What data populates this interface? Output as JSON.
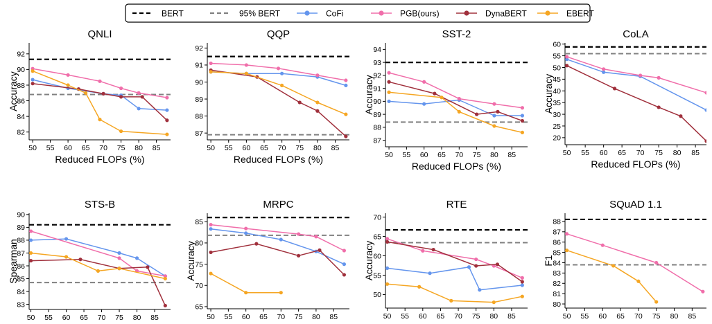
{
  "legend": {
    "placement": "top-center",
    "entries": [
      {
        "key": "bert",
        "label": "BERT",
        "style": "dashed",
        "color": "#000000"
      },
      {
        "key": "bert95",
        "label": "95% BERT",
        "style": "dashed",
        "color": "#808080"
      },
      {
        "key": "cofi",
        "label": "CoFi",
        "style": "solid-marker",
        "color": "#6495ED"
      },
      {
        "key": "pgb",
        "label": "PGB(ours)",
        "style": "solid-marker",
        "color": "#F06EAA"
      },
      {
        "key": "dyna",
        "label": "DynaBERT",
        "style": "solid-marker",
        "color": "#A0303C"
      },
      {
        "key": "ebert",
        "label": "EBERT",
        "style": "solid-marker",
        "color": "#F5A623"
      }
    ]
  },
  "chart_data": [
    {
      "type": "line",
      "title": "QNLI",
      "xlabel": "Reduced FLOPs (%)",
      "ylabel": "Accuracy",
      "xlim": [
        49,
        89
      ],
      "ylim": [
        81,
        93.4
      ],
      "xticks": [
        50,
        55,
        60,
        65,
        70,
        75,
        80,
        85
      ],
      "yticks": [
        82,
        84,
        86,
        88,
        90,
        92
      ],
      "grid": false,
      "ref_bert": 91.3,
      "ref_95": 86.8,
      "series": [
        {
          "name": "CoFi",
          "x": [
            50,
            60,
            70,
            75,
            80,
            88
          ],
          "y": [
            88.7,
            87.6,
            86.9,
            86.7,
            85.0,
            84.8
          ]
        },
        {
          "name": "PGB(ours)",
          "x": [
            50,
            60,
            69,
            75,
            80,
            88
          ],
          "y": [
            90.1,
            89.3,
            88.5,
            87.6,
            87.0,
            86.4
          ]
        },
        {
          "name": "DynaBERT",
          "x": [
            50,
            63,
            70,
            75,
            81,
            88
          ],
          "y": [
            88.2,
            87.5,
            86.9,
            86.5,
            86.5,
            83.5
          ]
        },
        {
          "name": "EBERT",
          "x": [
            50,
            60,
            65,
            69,
            75,
            88
          ],
          "y": [
            89.8,
            88.0,
            87.0,
            83.6,
            82.1,
            81.7
          ]
        }
      ]
    },
    {
      "type": "line",
      "title": "QQP",
      "xlabel": "Reduced FLOPs (%)",
      "ylabel": "",
      "xlim": [
        49,
        89
      ],
      "ylim": [
        86.6,
        92.3
      ],
      "xticks": [
        50,
        55,
        60,
        65,
        70,
        75,
        80,
        85
      ],
      "yticks": [
        87,
        88,
        89,
        90,
        91,
        92
      ],
      "grid": false,
      "ref_bert": 91.5,
      "ref_95": 86.9,
      "series": [
        {
          "name": "CoFi",
          "x": [
            50,
            60,
            70,
            80,
            88
          ],
          "y": [
            90.6,
            90.5,
            90.5,
            90.3,
            89.8
          ]
        },
        {
          "name": "PGB(ours)",
          "x": [
            50,
            60,
            69,
            80,
            88
          ],
          "y": [
            91.1,
            91.0,
            90.8,
            90.4,
            90.1
          ]
        },
        {
          "name": "DynaBERT",
          "x": [
            50,
            63,
            75,
            80,
            88
          ],
          "y": [
            90.7,
            90.3,
            88.8,
            88.3,
            86.8
          ]
        },
        {
          "name": "EBERT",
          "x": [
            50,
            60,
            70,
            80,
            88
          ],
          "y": [
            90.6,
            90.5,
            89.8,
            88.8,
            88.1
          ]
        }
      ]
    },
    {
      "type": "line",
      "title": "SST-2",
      "xlabel": "Reduced FLOPs (%)",
      "ylabel": "Accuracy",
      "xlim": [
        49,
        89.5
      ],
      "ylim": [
        86.5,
        94.5
      ],
      "xticks": [
        50,
        55,
        60,
        65,
        70,
        75,
        80,
        85
      ],
      "yticks": [
        87,
        88,
        89,
        90,
        91,
        92,
        93,
        94
      ],
      "grid": false,
      "ref_bert": 93.0,
      "ref_95": 88.4,
      "series": [
        {
          "name": "CoFi",
          "x": [
            50,
            60,
            70,
            80,
            88
          ],
          "y": [
            90.0,
            89.8,
            90.1,
            88.9,
            88.9
          ]
        },
        {
          "name": "PGB(ours)",
          "x": [
            50,
            60,
            70,
            80,
            88
          ],
          "y": [
            92.2,
            91.5,
            90.2,
            89.8,
            89.5
          ]
        },
        {
          "name": "DynaBERT",
          "x": [
            50,
            63,
            75,
            81,
            88
          ],
          "y": [
            91.5,
            90.6,
            89.0,
            89.2,
            88.5
          ]
        },
        {
          "name": "EBERT",
          "x": [
            50,
            65,
            70,
            80,
            88
          ],
          "y": [
            90.7,
            90.3,
            89.2,
            88.1,
            87.6
          ]
        }
      ]
    },
    {
      "type": "line",
      "title": "CoLA",
      "xlabel": "Reduced FLOPs (%)",
      "ylabel": "Accuracy",
      "xlim": [
        49.5,
        88
      ],
      "ylim": [
        17,
        60.5
      ],
      "xticks": [
        50,
        55,
        60,
        65,
        70,
        75,
        80,
        85
      ],
      "yticks": [
        20,
        25,
        30,
        35,
        40,
        45,
        50,
        55,
        60
      ],
      "grid": false,
      "ref_bert": 58.8,
      "ref_95": 55.9,
      "series": [
        {
          "name": "CoFi",
          "x": [
            50,
            60,
            70,
            88
          ],
          "y": [
            53.5,
            48.0,
            46.2,
            31.8
          ]
        },
        {
          "name": "PGB(ours)",
          "x": [
            50,
            60,
            70,
            75,
            88
          ],
          "y": [
            54.6,
            49.3,
            46.6,
            45.6,
            39.2
          ]
        },
        {
          "name": "DynaBERT",
          "x": [
            50,
            63,
            75,
            81,
            88
          ],
          "y": [
            50.8,
            41.0,
            33.0,
            29.2,
            18.5
          ]
        }
      ]
    },
    {
      "type": "line",
      "title": "STS-B",
      "xlabel": "Reduced FLOPs (%)",
      "ylabel": "Spearman",
      "xlim": [
        49.5,
        89.5
      ],
      "ylim": [
        82.6,
        90.1
      ],
      "xticks": [
        50,
        55,
        60,
        65,
        70,
        75,
        80,
        85
      ],
      "yticks": [
        83,
        84,
        85,
        86,
        87,
        88,
        89,
        90
      ],
      "grid": false,
      "ref_bert": 89.2,
      "ref_95": 84.7,
      "series": [
        {
          "name": "CoFi",
          "x": [
            50,
            60,
            75,
            80,
            88
          ],
          "y": [
            88.0,
            88.1,
            87.0,
            86.6,
            85.2
          ]
        },
        {
          "name": "PGB(ours)",
          "x": [
            50,
            75,
            80,
            88
          ],
          "y": [
            88.7,
            86.6,
            85.6,
            85.2
          ]
        },
        {
          "name": "DynaBERT",
          "x": [
            50,
            64,
            75,
            83,
            88
          ],
          "y": [
            86.4,
            86.5,
            85.8,
            85.9,
            82.9
          ]
        },
        {
          "name": "EBERT",
          "x": [
            50,
            60,
            69,
            75,
            88
          ],
          "y": [
            87.0,
            86.7,
            85.6,
            85.8,
            85.0
          ]
        }
      ]
    },
    {
      "type": "line",
      "title": "MRPC",
      "xlabel": "Reduced FLOPs (%)",
      "ylabel": "Accuracy",
      "xlim": [
        49,
        89.5
      ],
      "ylim": [
        64.5,
        87
      ],
      "xticks": [
        50,
        55,
        60,
        65,
        70,
        75,
        80,
        85
      ],
      "yticks": [
        65,
        70,
        75,
        80,
        85
      ],
      "grid": false,
      "ref_bert": 86.0,
      "ref_95": 81.8,
      "series": [
        {
          "name": "CoFi",
          "x": [
            50,
            60,
            70,
            80,
            88
          ],
          "y": [
            83.3,
            82.3,
            80.8,
            78.0,
            75.0
          ]
        },
        {
          "name": "PGB(ours)",
          "x": [
            50,
            60,
            75,
            80,
            88
          ],
          "y": [
            84.3,
            83.4,
            82.1,
            81.5,
            78.2
          ]
        },
        {
          "name": "DynaBERT",
          "x": [
            50,
            63,
            75,
            81,
            88
          ],
          "y": [
            77.8,
            79.8,
            77.0,
            78.3,
            72.5
          ]
        },
        {
          "name": "EBERT",
          "x": [
            50,
            60,
            70
          ],
          "y": [
            72.8,
            68.3,
            68.3
          ]
        }
      ]
    },
    {
      "type": "line",
      "title": "RTE",
      "xlabel": "Reduced FLOPs (%)",
      "ylabel": "Accuracy",
      "xlim": [
        49.5,
        89.5
      ],
      "ylim": [
        46.5,
        71
      ],
      "xticks": [
        50,
        55,
        60,
        65,
        70,
        75,
        80,
        85
      ],
      "yticks": [
        50,
        55,
        60,
        65,
        70
      ],
      "grid": false,
      "ref_bert": 66.7,
      "ref_95": 63.4,
      "series": [
        {
          "name": "CoFi",
          "x": [
            50,
            62,
            73,
            76,
            88
          ],
          "y": [
            56.8,
            55.5,
            57.1,
            51.2,
            52.4
          ]
        },
        {
          "name": "PGB(ours)",
          "x": [
            50,
            60,
            75,
            80,
            88
          ],
          "y": [
            64.4,
            61.3,
            59.1,
            57.4,
            54.3
          ]
        },
        {
          "name": "DynaBERT",
          "x": [
            50,
            63,
            75,
            81,
            88
          ],
          "y": [
            63.6,
            61.6,
            57.4,
            57.8,
            53.3
          ]
        },
        {
          "name": "EBERT",
          "x": [
            50,
            59,
            68,
            80,
            88
          ],
          "y": [
            52.7,
            52.0,
            48.4,
            48.0,
            49.5
          ]
        }
      ]
    },
    {
      "type": "line",
      "title": "SQuAD 1.1",
      "xlabel": "Reduced FLOPs (%)",
      "ylabel": "F1",
      "xlim": [
        49.5,
        89
      ],
      "ylim": [
        79.6,
        88.8
      ],
      "xticks": [
        50,
        55,
        60,
        65,
        70,
        75,
        80,
        85
      ],
      "yticks": [
        80,
        81,
        82,
        83,
        84,
        85,
        86,
        87,
        88
      ],
      "grid": false,
      "ref_bert": 88.2,
      "ref_95": 83.8,
      "series": [
        {
          "name": "PGB(ours)",
          "x": [
            50,
            60,
            75,
            88
          ],
          "y": [
            86.8,
            85.7,
            84.0,
            81.2
          ]
        },
        {
          "name": "EBERT",
          "x": [
            50,
            63,
            70,
            75
          ],
          "y": [
            85.2,
            83.7,
            82.2,
            80.2
          ]
        }
      ]
    }
  ]
}
